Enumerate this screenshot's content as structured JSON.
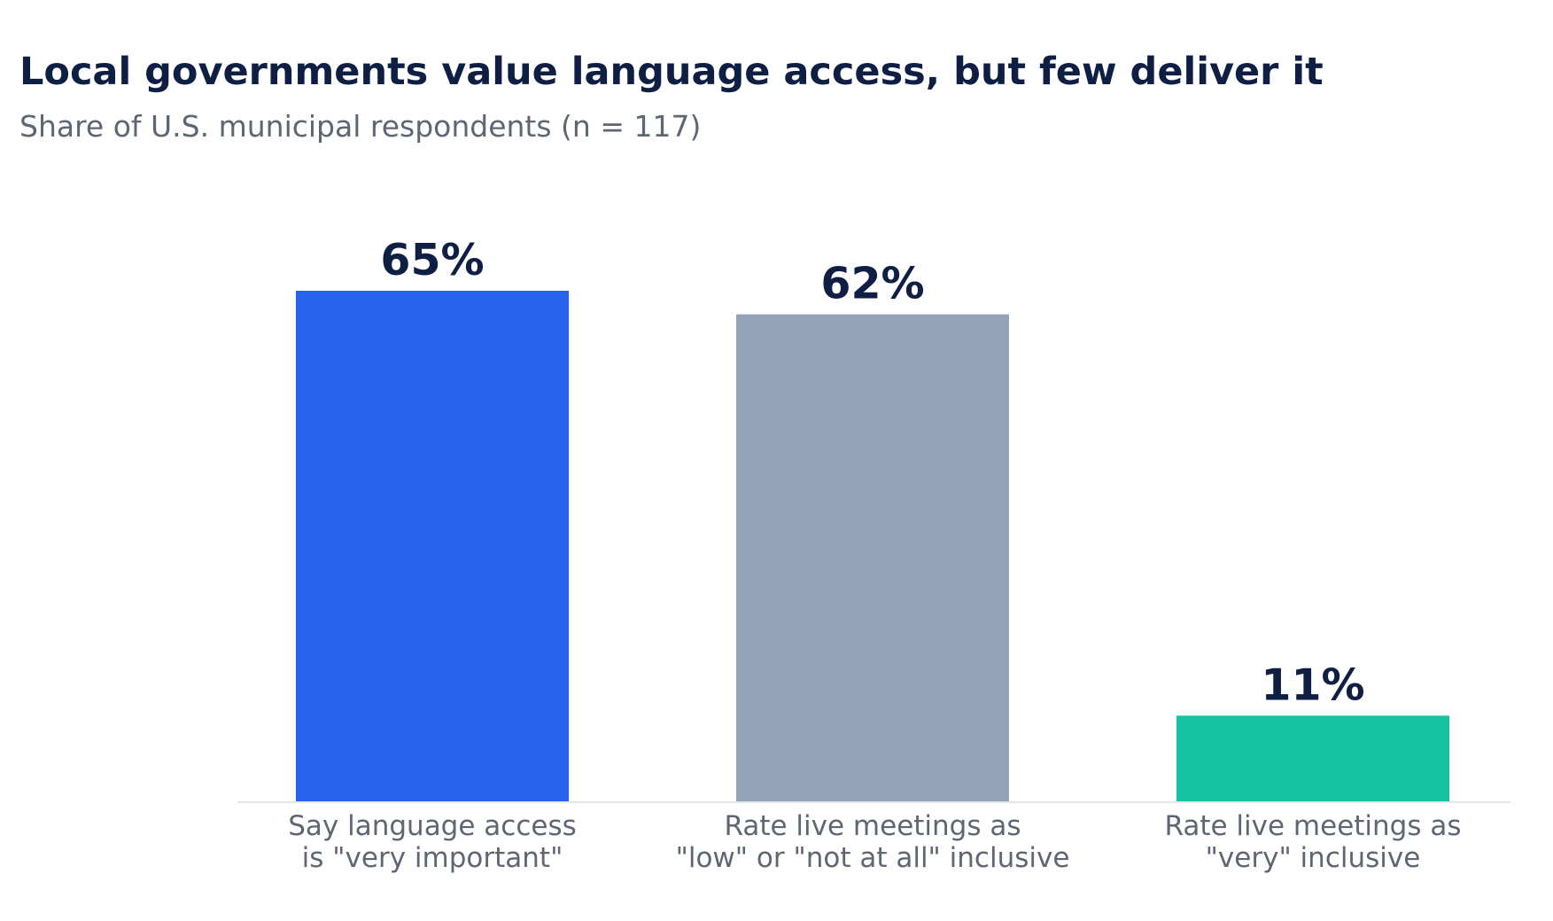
{
  "chart_data": {
    "type": "bar",
    "title": "Local governments value language access, but few deliver it",
    "subtitle": "Share of U.S. municipal respondents (n = 117)",
    "xlabel": "",
    "ylabel": "",
    "ylim": [
      0,
      70
    ],
    "grid": false,
    "unit": "%",
    "categories": [
      [
        "Say language access",
        "is \"very important\""
      ],
      [
        "Rate live meetings as",
        "\"low\" or \"not at all\" inclusive"
      ],
      [
        "Rate live meetings as",
        "\"very\" inclusive"
      ]
    ],
    "values": [
      65,
      62,
      11
    ],
    "value_labels": [
      "65%",
      "62%",
      "11%"
    ],
    "colors": [
      "#2563eb",
      "#94a3b8",
      "#14c3a2"
    ]
  }
}
